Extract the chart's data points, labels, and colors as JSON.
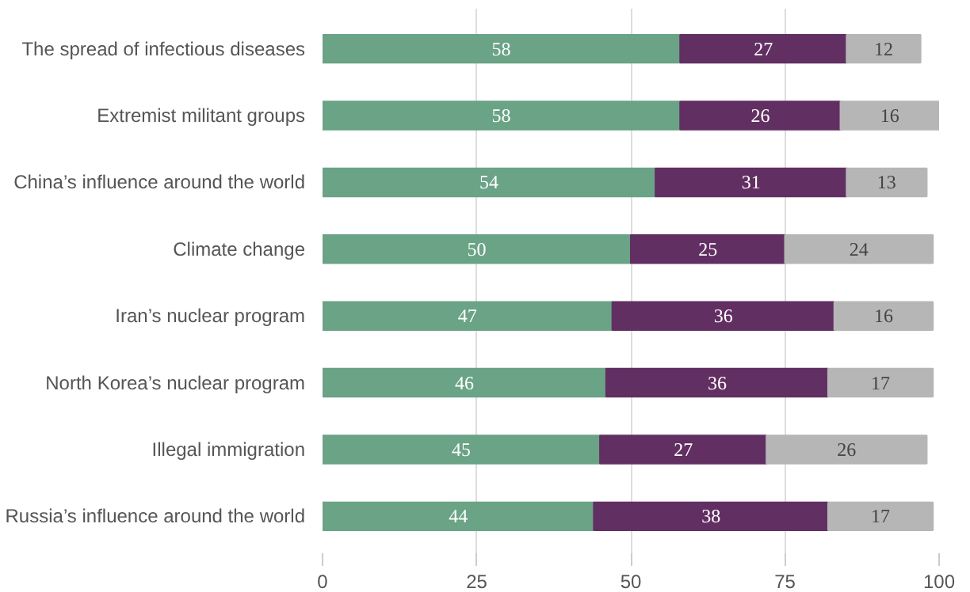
{
  "chart_data": {
    "type": "bar",
    "orientation": "horizontal",
    "stacked": true,
    "data_labels": true,
    "grid": "x",
    "categories": [
      "The spread of infectious diseases",
      "Extremist militant groups",
      "China’s influence around the world",
      "Climate change",
      "Iran’s nuclear program",
      "North Korea’s nuclear program",
      "Illegal immigration",
      "Russia’s influence around the world"
    ],
    "series": [
      {
        "color": "#6aa386",
        "values": [
          58,
          58,
          54,
          50,
          47,
          46,
          45,
          44
        ]
      },
      {
        "color": "#622f62",
        "values": [
          27,
          26,
          31,
          25,
          36,
          36,
          27,
          38
        ]
      },
      {
        "color": "#b6b6b6",
        "values": [
          12,
          16,
          13,
          24,
          16,
          17,
          26,
          17
        ]
      }
    ],
    "xlim": [
      0,
      100
    ],
    "xticks": [
      0,
      25,
      50,
      75,
      100
    ]
  }
}
